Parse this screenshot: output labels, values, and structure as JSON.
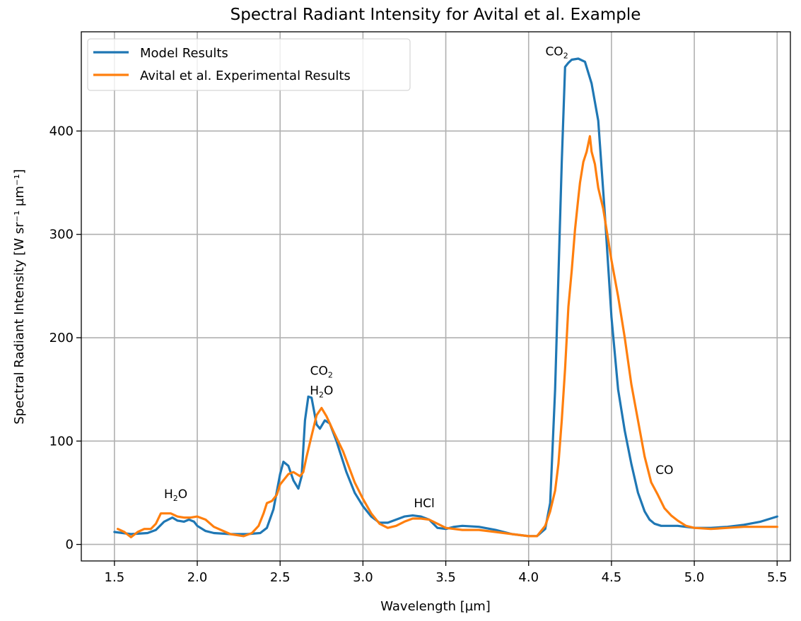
{
  "chart_data": {
    "type": "line",
    "title": "Spectral Radiant Intensity for Avital et al. Example",
    "xlabel": "Wavelength [µm]",
    "ylabel": "Spectral Radiant Intensity [W sr⁻¹ µm⁻¹]",
    "xlim": [
      1.3,
      5.58
    ],
    "ylim": [
      -16,
      496
    ],
    "xticks": [
      1.5,
      2.0,
      2.5,
      3.0,
      3.5,
      4.0,
      4.5,
      5.0,
      5.5
    ],
    "xtick_labels": [
      "1.5",
      "2.0",
      "2.5",
      "3.0",
      "3.5",
      "4.0",
      "4.5",
      "5.0",
      "5.5"
    ],
    "yticks": [
      0,
      100,
      200,
      300,
      400
    ],
    "ytick_labels": [
      "0",
      "100",
      "200",
      "300",
      "400"
    ],
    "grid": true,
    "legend_position": "top-left",
    "series": [
      {
        "name": "Model Results",
        "color": "#1f77b4",
        "x": [
          1.5,
          1.6,
          1.7,
          1.75,
          1.8,
          1.85,
          1.88,
          1.92,
          1.95,
          1.98,
          2.0,
          2.05,
          2.1,
          2.2,
          2.3,
          2.38,
          2.42,
          2.46,
          2.5,
          2.52,
          2.55,
          2.58,
          2.61,
          2.63,
          2.65,
          2.67,
          2.69,
          2.72,
          2.74,
          2.77,
          2.8,
          2.84,
          2.9,
          2.95,
          3.0,
          3.05,
          3.1,
          3.15,
          3.2,
          3.25,
          3.3,
          3.35,
          3.4,
          3.45,
          3.5,
          3.55,
          3.6,
          3.7,
          3.8,
          3.9,
          4.0,
          4.05,
          4.1,
          4.13,
          4.16,
          4.18,
          4.2,
          4.22,
          4.24,
          4.26,
          4.3,
          4.34,
          4.38,
          4.42,
          4.46,
          4.5,
          4.54,
          4.58,
          4.62,
          4.66,
          4.7,
          4.73,
          4.76,
          4.8,
          4.9,
          5.0,
          5.1,
          5.2,
          5.3,
          5.4,
          5.5
        ],
        "y": [
          12,
          10,
          11,
          14,
          22,
          26,
          23,
          22,
          24,
          22,
          18,
          13,
          11,
          10,
          10,
          11,
          16,
          34,
          68,
          80,
          76,
          62,
          54,
          66,
          120,
          143,
          142,
          116,
          112,
          120,
          117,
          100,
          70,
          50,
          37,
          27,
          21,
          21,
          24,
          27,
          28,
          27,
          24,
          16,
          15,
          17,
          18,
          17,
          14,
          10,
          8,
          8,
          15,
          40,
          150,
          260,
          370,
          462,
          466,
          469,
          470,
          467,
          446,
          410,
          320,
          220,
          150,
          110,
          78,
          50,
          32,
          24,
          20,
          18,
          18,
          16,
          16,
          17,
          19,
          22,
          27
        ]
      },
      {
        "name": "Avital et al. Experimental Results",
        "color": "#ff7f0e",
        "x": [
          1.52,
          1.56,
          1.6,
          1.64,
          1.68,
          1.72,
          1.75,
          1.78,
          1.8,
          1.84,
          1.88,
          1.92,
          1.96,
          2.0,
          2.05,
          2.1,
          2.2,
          2.28,
          2.33,
          2.37,
          2.4,
          2.42,
          2.45,
          2.48,
          2.5,
          2.55,
          2.58,
          2.62,
          2.64,
          2.66,
          2.69,
          2.72,
          2.75,
          2.78,
          2.82,
          2.88,
          2.95,
          3.0,
          3.05,
          3.1,
          3.15,
          3.2,
          3.25,
          3.3,
          3.35,
          3.4,
          3.45,
          3.5,
          3.6,
          3.7,
          3.8,
          3.9,
          4.0,
          4.05,
          4.1,
          4.13,
          4.16,
          4.18,
          4.2,
          4.22,
          4.24,
          4.26,
          4.28,
          4.3,
          4.31,
          4.33,
          4.35,
          4.37,
          4.38,
          4.4,
          4.42,
          4.45,
          4.48,
          4.5,
          4.54,
          4.58,
          4.62,
          4.66,
          4.7,
          4.74,
          4.78,
          4.82,
          4.86,
          4.9,
          4.95,
          5.0,
          5.1,
          5.2,
          5.3,
          5.4,
          5.5
        ],
        "y": [
          15,
          12,
          7,
          12,
          15,
          15,
          20,
          30,
          30,
          30,
          27,
          26,
          26,
          27,
          24,
          17,
          10,
          8,
          11,
          18,
          30,
          40,
          42,
          48,
          58,
          68,
          70,
          66,
          70,
          85,
          105,
          125,
          132,
          124,
          110,
          90,
          60,
          44,
          30,
          20,
          16,
          18,
          22,
          25,
          25,
          24,
          20,
          16,
          14,
          14,
          12,
          10,
          8,
          8,
          18,
          32,
          52,
          78,
          120,
          170,
          230,
          265,
          305,
          335,
          350,
          370,
          380,
          395,
          380,
          368,
          345,
          325,
          295,
          275,
          240,
          200,
          155,
          120,
          85,
          60,
          48,
          35,
          28,
          23,
          18,
          16,
          15,
          16,
          17,
          17,
          17
        ]
      }
    ],
    "annotations": [
      {
        "main": "H",
        "sub": "2",
        "rest": "O",
        "x": 1.87,
        "y": 45
      },
      {
        "main": "CO",
        "sub": "2",
        "rest": "",
        "x": 2.75,
        "y": 164
      },
      {
        "main": "H",
        "sub": "2",
        "rest": "O",
        "x": 2.75,
        "y": 145
      },
      {
        "main": "HCl",
        "sub": "",
        "rest": "",
        "x": 3.37,
        "y": 36
      },
      {
        "main": "CO",
        "sub": "2",
        "rest": "",
        "x": 4.17,
        "y": 473
      },
      {
        "main": "CO",
        "sub": "",
        "rest": "",
        "x": 4.82,
        "y": 68
      }
    ]
  }
}
